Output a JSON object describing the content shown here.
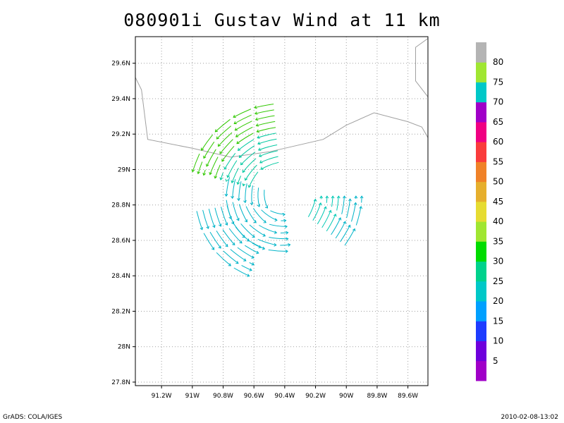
{
  "title": "080901i Gustav Wind at 11 km",
  "footer": {
    "left": "GrADS: COLA/IGES",
    "right": "2010-02-08-13:02"
  },
  "chart_data": {
    "type": "vector_field",
    "title": "080901i Gustav Wind at 11 km",
    "xlim": [
      -91.37,
      -89.47
    ],
    "ylim": [
      27.78,
      29.75
    ],
    "x_ticks": [
      -91.2,
      -91.0,
      -90.8,
      -90.6,
      -90.4,
      -90.2,
      -90.0,
      -89.8,
      -89.6
    ],
    "x_tick_labels": [
      "91.2W",
      "91W",
      "90.8W",
      "90.6W",
      "90.4W",
      "90.2W",
      "90W",
      "89.8W",
      "89.6W"
    ],
    "y_ticks": [
      27.8,
      28.0,
      28.2,
      28.4,
      28.6,
      28.8,
      29.0,
      29.2,
      29.4,
      29.6
    ],
    "y_tick_labels": [
      "27.8N",
      "28N",
      "28.2N",
      "28.4N",
      "28.6N",
      "28.8N",
      "29N",
      "29.2N",
      "29.4N",
      "29.6N"
    ],
    "grid": true,
    "center": {
      "lon": -90.42,
      "lat": 28.85
    },
    "coastline": [
      [
        -91.37,
        29.52
      ],
      [
        -91.33,
        29.45
      ],
      [
        -91.29,
        29.17
      ],
      [
        -91.0,
        29.12
      ],
      [
        -90.75,
        29.07
      ],
      [
        -90.5,
        29.1
      ],
      [
        -90.4,
        29.12
      ],
      [
        -90.15,
        29.17
      ],
      [
        -90.0,
        29.25
      ],
      [
        -89.82,
        29.32
      ],
      [
        -89.6,
        29.27
      ],
      [
        -89.51,
        29.24
      ],
      [
        -89.47,
        29.18
      ]
    ],
    "coastline_ne": [
      [
        -89.47,
        29.74
      ],
      [
        -89.55,
        29.69
      ],
      [
        -89.55,
        29.5
      ],
      [
        -89.47,
        29.41
      ]
    ],
    "swaths": [
      {
        "name": "north-arc",
        "r_min": 0.22,
        "r_max": 0.6,
        "a_min": 95,
        "a_max": 165,
        "color_outer": "#30c800",
        "color_inner": "#00c8a0"
      },
      {
        "name": "west-arc",
        "r_min": 0.12,
        "r_max": 0.36,
        "a_min": 160,
        "a_max": 280,
        "color_outer": "#00b4c8",
        "color_inner": "#00b4c8"
      },
      {
        "name": "southwest-arc",
        "r_min": 0.36,
        "r_max": 0.56,
        "a_min": 190,
        "a_max": 248,
        "color_outer": "#00b4c8",
        "color_inner": "#00b4c8"
      },
      {
        "name": "east-arc",
        "r_min": 0.22,
        "r_max": 0.52,
        "a_min": -38,
        "a_max": 0,
        "color_outer": "#00b4c8",
        "color_inner": "#00c8b4"
      }
    ],
    "colorbar": {
      "labels": [
        "5",
        "10",
        "15",
        "20",
        "25",
        "30",
        "35",
        "40",
        "45",
        "50",
        "55",
        "60",
        "65",
        "70",
        "75",
        "80"
      ],
      "colors": [
        "#a000c8",
        "#6e00dc",
        "#1e3cff",
        "#00a0ff",
        "#00c8c8",
        "#00d28c",
        "#00dc00",
        "#a0e632",
        "#e6dc32",
        "#e6af2d",
        "#f08228",
        "#fa3c3c",
        "#f00082",
        "#a000c8",
        "#00c8c8",
        "#a0e632",
        "#b4b4b4"
      ]
    }
  }
}
